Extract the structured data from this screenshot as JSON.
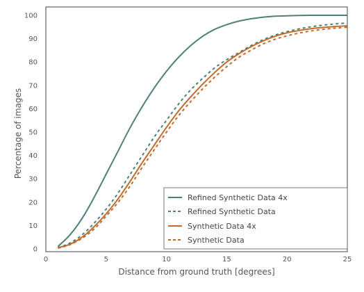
{
  "chart_data": {
    "type": "line",
    "title": "",
    "xlabel": "Distance from ground truth [degrees]",
    "ylabel": "Percentage of images",
    "xlim": [
      0,
      25
    ],
    "ylim": [
      0,
      100
    ],
    "x_ticks": [
      "0",
      "5",
      "10",
      "15",
      "20",
      "25"
    ],
    "y_ticks": [
      "0",
      "10",
      "20",
      "30",
      "40",
      "50",
      "60",
      "70",
      "80",
      "90",
      "100"
    ],
    "grid": false,
    "legend_position": "bottom-right",
    "x": [
      1,
      2,
      3,
      4,
      5,
      6,
      7,
      8,
      9,
      10,
      11,
      12,
      13,
      14,
      15,
      16,
      17,
      18,
      19,
      20,
      21,
      22,
      23,
      24,
      25
    ],
    "series": [
      {
        "name": "Refined Synthetic Data 4x",
        "color": "#4e7f74",
        "dash": "solid",
        "values": [
          1,
          6,
          13,
          22,
          32,
          42,
          52,
          61,
          69,
          76,
          82,
          87,
          91,
          94,
          96,
          97.5,
          98.5,
          99.2,
          99.6,
          99.8,
          99.9,
          100,
          100,
          100,
          100
        ]
      },
      {
        "name": "Refined Synthetic Data",
        "color": "#4e7f74",
        "dash": "dashed",
        "values": [
          0.5,
          2.5,
          6,
          11,
          17,
          24,
          32,
          40,
          48,
          55,
          62,
          68,
          73,
          77.5,
          81,
          84,
          87,
          89.5,
          91.5,
          93,
          94.2,
          95.1,
          95.8,
          96.3,
          96.7
        ]
      },
      {
        "name": "Synthetic Data 4x",
        "color": "#c06a2b",
        "dash": "solid",
        "values": [
          0.5,
          2,
          5,
          9.5,
          15,
          21.5,
          29,
          37,
          44.5,
          52,
          59,
          65,
          70.5,
          75.5,
          80,
          83.5,
          86.5,
          89,
          91,
          92.5,
          93.5,
          94.3,
          94.8,
          95.2,
          95.5
        ]
      },
      {
        "name": "Synthetic Data",
        "color": "#c06a2b",
        "dash": "dashed",
        "values": [
          0.3,
          1.8,
          4.5,
          8.5,
          14,
          20,
          27,
          35,
          42.5,
          50,
          57,
          63,
          68.5,
          73.5,
          78,
          82,
          85,
          87.7,
          89.7,
          91.2,
          92.4,
          93.3,
          94,
          94.5,
          94.9
        ]
      }
    ]
  }
}
